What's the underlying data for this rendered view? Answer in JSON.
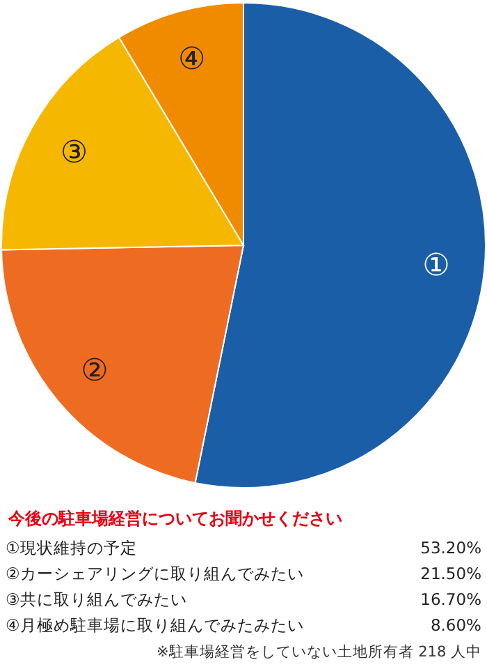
{
  "chart_data": {
    "type": "pie",
    "title": "今後の駐車場経営についてお聞かせください",
    "categories": [
      "①",
      "②",
      "③",
      "④"
    ],
    "values": [
      53.2,
      21.5,
      16.7,
      8.6
    ],
    "colors": [
      "#1a5ea8",
      "#ee6c22",
      "#f6b700",
      "#f08b00"
    ],
    "annotations": [
      "①現状維持の予定",
      "53.20%",
      "②カーシェアリングに取り組んでみたい",
      "21.50%",
      "③共に取り組んでみたい",
      "16.70%",
      "④月極め駐車場に取り組んでみたみたい",
      "8.60%",
      "※駐車場経営をしていない土地所有者 218 人中"
    ]
  }
}
